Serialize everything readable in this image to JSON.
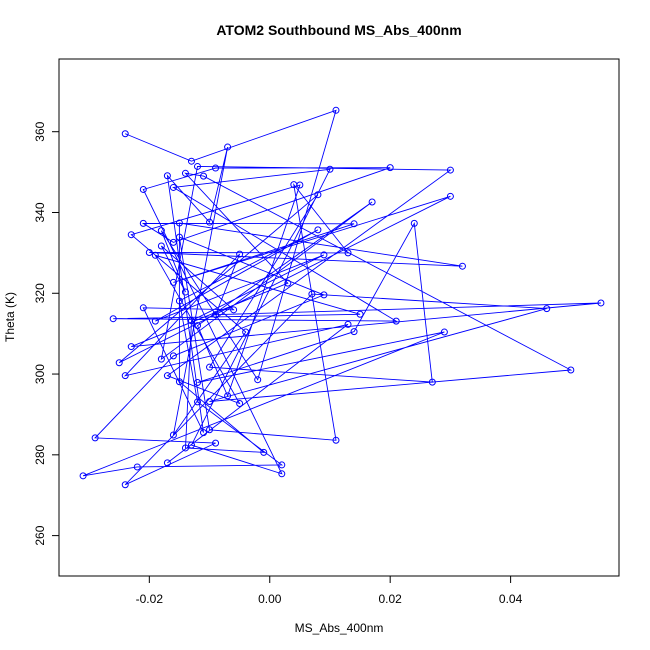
{
  "chart_data": {
    "type": "line",
    "title": "ATOM2 Southbound MS_Abs_400nm",
    "xlabel": "MS_Abs_400nm",
    "ylabel": "Theta (K)",
    "xlim": [
      -0.035,
      0.058
    ],
    "ylim": [
      250,
      378
    ],
    "x_ticks": [
      "-0.02",
      "0.00",
      "0.02",
      "0.04"
    ],
    "x_tick_values": [
      -0.02,
      0.0,
      0.02,
      0.04
    ],
    "y_ticks": [
      "260",
      "280",
      "300",
      "320",
      "340",
      "360"
    ],
    "y_tick_values": [
      260,
      280,
      300,
      320,
      340,
      360
    ],
    "grid": false,
    "legend": "none",
    "line_color": "#0000ff",
    "marker": "open-circle",
    "series": [
      {
        "points": [
          [
            -0.024,
            359.5
          ],
          [
            -0.013,
            352.7
          ],
          [
            0.011,
            365.3
          ],
          [
            -0.002,
            298.6
          ],
          [
            -0.018,
            335.5
          ],
          [
            -0.014,
            320.3
          ],
          [
            -0.018,
            331.7
          ],
          [
            -0.006,
            315.9
          ],
          [
            -0.021,
            316.4
          ],
          [
            -0.011,
            285.5
          ],
          [
            -0.017,
            349.1
          ],
          [
            -0.01,
            337.6
          ],
          [
            -0.007,
            356.2
          ],
          [
            -0.016,
            284.9
          ],
          [
            -0.004,
            310.4
          ],
          [
            -0.023,
            334.5
          ],
          [
            0.005,
            346.8
          ],
          [
            -0.007,
            294.6
          ],
          [
            -0.012,
            312.0
          ],
          [
            0.017,
            342.6
          ],
          [
            -0.018,
            303.7
          ],
          [
            -0.012,
            351.4
          ],
          [
            0.03,
            350.5
          ],
          [
            -0.017,
            299.6
          ],
          [
            -0.005,
            292.7
          ],
          [
            -0.019,
            329.4
          ],
          [
            0.015,
            314.8
          ],
          [
            -0.026,
            313.7
          ],
          [
            0.021,
            313.1
          ],
          [
            -0.016,
            346.2
          ],
          [
            0.01,
            350.7
          ],
          [
            -0.013,
            282.4
          ],
          [
            0.002,
            275.3
          ],
          [
            -0.021,
            345.7
          ],
          [
            -0.009,
            351.0
          ],
          [
            0.02,
            351.1
          ],
          [
            -0.016,
            332.6
          ],
          [
            -0.021,
            337.3
          ],
          [
            0.014,
            337.2
          ],
          [
            -0.016,
            322.7
          ],
          [
            0.03,
            344.0
          ],
          [
            -0.025,
            302.8
          ],
          [
            0.008,
            344.4
          ],
          [
            -0.01,
            301.7
          ],
          [
            0.027,
            298.0
          ],
          [
            0.024,
            337.3
          ],
          [
            0.014,
            310.5
          ],
          [
            -0.012,
            297.9
          ],
          [
            0.029,
            310.4
          ],
          [
            -0.031,
            274.8
          ],
          [
            -0.022,
            277.0
          ],
          [
            0.002,
            277.5
          ],
          [
            -0.012,
            293.1
          ],
          [
            -0.015,
            318.1
          ],
          [
            0.008,
            335.7
          ],
          [
            -0.019,
            313.1
          ],
          [
            0.009,
            329.5
          ],
          [
            -0.013,
            313.2
          ],
          [
            -0.014,
            281.7
          ],
          [
            -0.001,
            280.6
          ],
          [
            -0.015,
            298.1
          ],
          [
            -0.015,
            337.4
          ],
          [
            0.032,
            326.7
          ],
          [
            -0.02,
            330.1
          ],
          [
            0.013,
            330.0
          ],
          [
            0.004,
            346.9
          ],
          [
            0.011,
            283.6
          ],
          [
            -0.01,
            286.2
          ],
          [
            -0.015,
            333.9
          ],
          [
            0.009,
            319.6
          ],
          [
            -0.016,
            304.5
          ],
          [
            -0.029,
            284.2
          ],
          [
            -0.009,
            282.9
          ],
          [
            -0.024,
            272.6
          ],
          [
            0.007,
            319.8
          ],
          [
            0.046,
            316.2
          ],
          [
            -0.01,
            293.2
          ],
          [
            0.05,
            301.0
          ],
          [
            -0.011,
            349.0
          ],
          [
            -0.014,
            349.7
          ],
          [
            0.003,
            322.5
          ],
          [
            -0.023,
            306.8
          ],
          [
            0.055,
            317.6
          ],
          [
            -0.009,
            314.7
          ],
          [
            -0.005,
            329.7
          ],
          [
            -0.024,
            299.6
          ],
          [
            0.013,
            312.3
          ],
          [
            -0.017,
            278.0
          ]
        ]
      }
    ]
  }
}
